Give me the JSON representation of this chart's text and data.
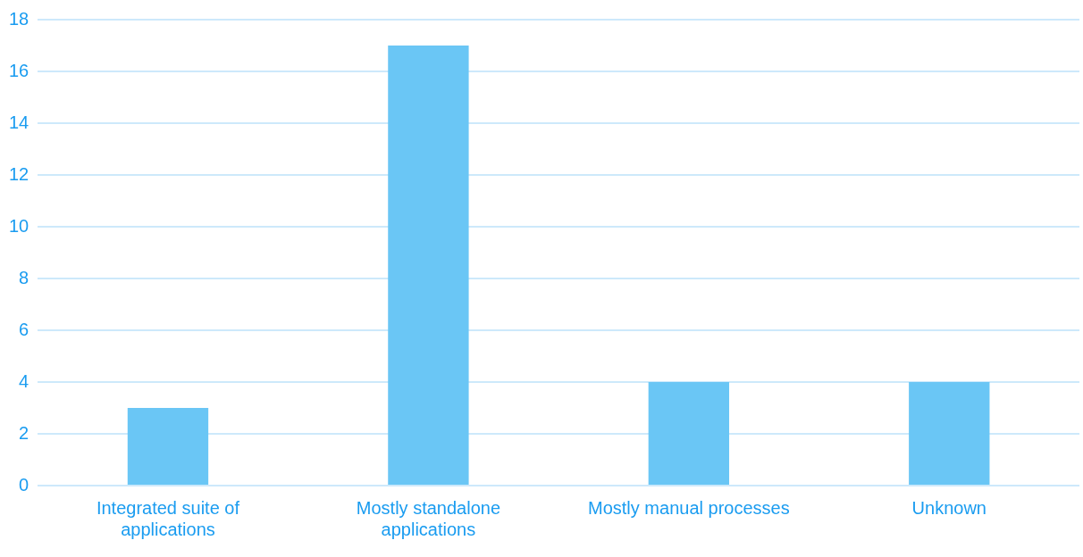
{
  "chart_data": {
    "type": "bar",
    "categories": [
      "Integrated suite of applications",
      "Mostly standalone applications",
      "Mostly manual processes",
      "Unknown"
    ],
    "values": [
      3,
      17,
      4,
      4
    ],
    "color": "#6ac6f5",
    "ylim": [
      0,
      18
    ],
    "yticks": [
      0,
      2,
      4,
      6,
      8,
      10,
      12,
      14,
      16,
      18
    ],
    "grid": "y",
    "legend": false
  }
}
